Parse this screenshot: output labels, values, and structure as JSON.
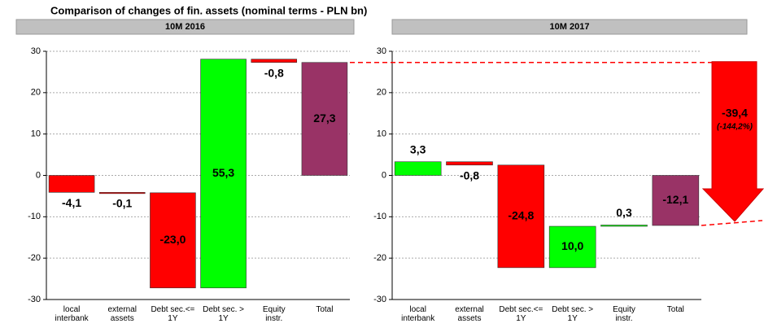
{
  "title": "Comparison of changes of fin. assets (nominal terms - PLN bn)",
  "chart_data": [
    {
      "type": "waterfall",
      "title": "10M 2016",
      "categories": [
        "local\ninterbank",
        "external\nassets",
        "Debt sec.<=\n1Y",
        "Debt sec. >\n1Y",
        "Equity\ninstr.",
        "Total"
      ],
      "values": [
        -4.1,
        -0.1,
        -23.0,
        55.3,
        -0.8,
        27.3
      ],
      "value_labels": [
        "-4,1",
        "-0,1",
        "-23,0",
        "55,3",
        "-0,8",
        "27,3"
      ],
      "last_is_total": true,
      "colors": {
        "increase": "#00ff00",
        "decrease": "#ff0000",
        "total": "#993366"
      },
      "ylim": [
        -30,
        30
      ],
      "yticks": [
        -30,
        -20,
        -10,
        0,
        10,
        20,
        30
      ],
      "grid": true
    },
    {
      "type": "waterfall",
      "title": "10M 2017",
      "categories": [
        "local\ninterbank",
        "external\nassets",
        "Debt sec.<=\n1Y",
        "Debt sec. >\n1Y",
        "Equity\ninstr.",
        "Total"
      ],
      "values": [
        3.3,
        -0.8,
        -24.8,
        10.0,
        0.3,
        -12.1
      ],
      "value_labels": [
        "3,3",
        "-0,8",
        "-24,8",
        "10,0",
        "0,3",
        "-12,1"
      ],
      "last_is_total": true,
      "colors": {
        "increase": "#00ff00",
        "decrease": "#ff0000",
        "total": "#993366"
      },
      "ylim": [
        -30,
        30
      ],
      "yticks": [
        -30,
        -20,
        -10,
        0,
        10,
        20,
        30
      ],
      "grid": true,
      "annotations": [
        "-39,4",
        "(-144,2%)"
      ]
    }
  ]
}
